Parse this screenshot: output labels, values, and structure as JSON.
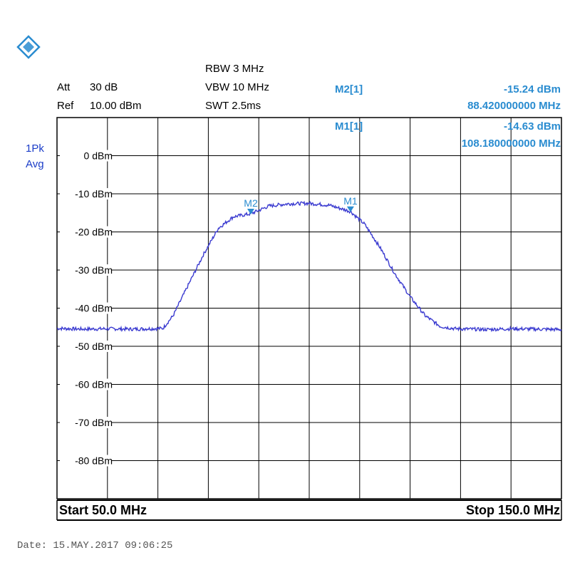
{
  "logo": {
    "icon": "rohde-schwarz-logo-icon",
    "color": "#2a8cd0"
  },
  "settings": {
    "att_label": "Att",
    "att_value": "30 dB",
    "ref_label": "Ref",
    "ref_value": "10.00 dBm",
    "rbw": "RBW 3 MHz",
    "vbw": "VBW 10 MHz",
    "swt": "SWT 2.5ms"
  },
  "detector": {
    "line1": "1Pk",
    "line2": "Avg"
  },
  "markers": [
    {
      "label": "M2[1]",
      "level": "-15.24 dBm",
      "freq": "88.420000000 MHz"
    },
    {
      "label": "M1[1]",
      "level": "-14.63 dBm",
      "freq": "108.180000000 MHz"
    }
  ],
  "footer": {
    "start": "Start 50.0 MHz",
    "stop": "Stop 150.0 MHz"
  },
  "date": "Date: 15.MAY.2017  09:06:25",
  "chart_data": {
    "type": "line",
    "xlim": [
      50,
      150
    ],
    "ylim": [
      -90,
      10
    ],
    "y_ticks": [
      {
        "v": 0,
        "label": "0 dBm"
      },
      {
        "v": -10,
        "label": "-10 dBm"
      },
      {
        "v": -20,
        "label": "-20 dBm"
      },
      {
        "v": -30,
        "label": "-30 dBm"
      },
      {
        "v": -40,
        "label": "-40 dBm"
      },
      {
        "v": -50,
        "label": "-50 dBm"
      },
      {
        "v": -60,
        "label": "-60 dBm"
      },
      {
        "v": -70,
        "label": "-70 dBm"
      },
      {
        "v": -80,
        "label": "-80 dBm"
      }
    ],
    "grid": true,
    "trace_color": "#3b3bd0",
    "series": [
      {
        "x": [
          50,
          55,
          60,
          65,
          71,
          73,
          76,
          79,
          82,
          85,
          88.42,
          92,
          96,
          100,
          104,
          108.18,
          111,
          114,
          117,
          120,
          123,
          126,
          129,
          132,
          135,
          140,
          145,
          150
        ],
        "y": [
          -45.3,
          -45.5,
          -45.4,
          -45.5,
          -45.3,
          -42,
          -34,
          -26,
          -19,
          -16,
          -15.24,
          -13.2,
          -12.6,
          -12.5,
          -13.0,
          -14.63,
          -18,
          -24,
          -31,
          -37,
          -42,
          -44.8,
          -45.4,
          -45.5,
          -45.6,
          -45.4,
          -45.5,
          -45.6
        ]
      }
    ],
    "markers": [
      {
        "label": "M2",
        "x": 88.42,
        "y": -15.24
      },
      {
        "label": "M1",
        "x": 108.18,
        "y": -14.63
      }
    ]
  }
}
